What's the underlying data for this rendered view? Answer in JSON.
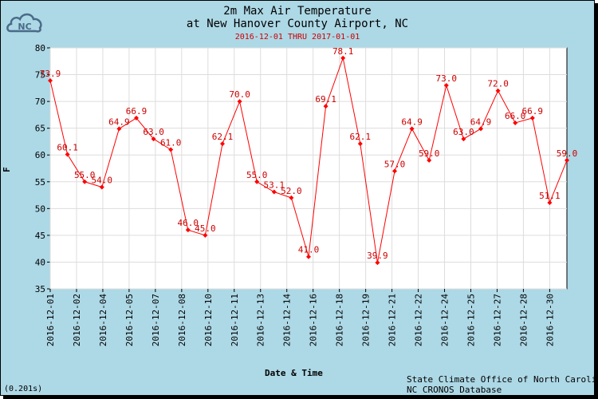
{
  "title_line1": "2m Max Air Temperature",
  "title_line2": "at New Hanover County Airport, NC",
  "subtitle": "2016-12-01 THRU 2017-01-01",
  "credit_line1": "State Climate Office of North Carolina",
  "credit_line2": "NC CRONOS Database",
  "timing": "(0.201s)",
  "logo": {
    "icon": "nc-cloud-logo-icon",
    "text": "NC"
  },
  "colors": {
    "background": "#add8e6",
    "plot": "#ffffff",
    "series": "#ff0000",
    "label": "#cc0000",
    "subtitle": "#cc0000"
  },
  "chart_data": {
    "type": "line",
    "xlabel": "Date & Time",
    "ylabel": "F",
    "ylim": [
      35,
      80
    ],
    "yticks": [
      35,
      40,
      45,
      50,
      55,
      60,
      65,
      70,
      75,
      80
    ],
    "xticks": [
      "2016-12-01",
      "2016-12-02",
      "2016-12-04",
      "2016-12-05",
      "2016-12-07",
      "2016-12-08",
      "2016-12-10",
      "2016-12-11",
      "2016-12-13",
      "2016-12-14",
      "2016-12-16",
      "2016-12-18",
      "2016-12-19",
      "2016-12-21",
      "2016-12-22",
      "2016-12-24",
      "2016-12-25",
      "2016-12-27",
      "2016-12-28",
      "2016-12-30"
    ],
    "grid": true,
    "series": [
      {
        "values": [
          73.9,
          60.1,
          55.0,
          54.0,
          64.9,
          66.9,
          63.0,
          61.0,
          46.0,
          45.0,
          62.1,
          70.0,
          55.0,
          53.1,
          52.0,
          41.0,
          69.1,
          78.1,
          62.1,
          39.9,
          57.0,
          64.9,
          59.0,
          73.0,
          63.0,
          64.9,
          72.0,
          66.0,
          66.9,
          51.1,
          59.0
        ],
        "labels": [
          "73.9",
          "60.1",
          "55.0",
          "54.0",
          "64.9",
          "66.9",
          "63.0",
          "61.0",
          "46.0",
          "45.0",
          "62.1",
          "70.0",
          "55.0",
          "53.1",
          "52.0",
          "41.0",
          "69.1",
          "78.1",
          "62.1",
          "39.9",
          "57.0",
          "64.9",
          "59.0",
          "73.0",
          "63.0",
          "64.9",
          "72.0",
          "66.0",
          "66.9",
          "51.1",
          "59.0"
        ]
      }
    ]
  }
}
